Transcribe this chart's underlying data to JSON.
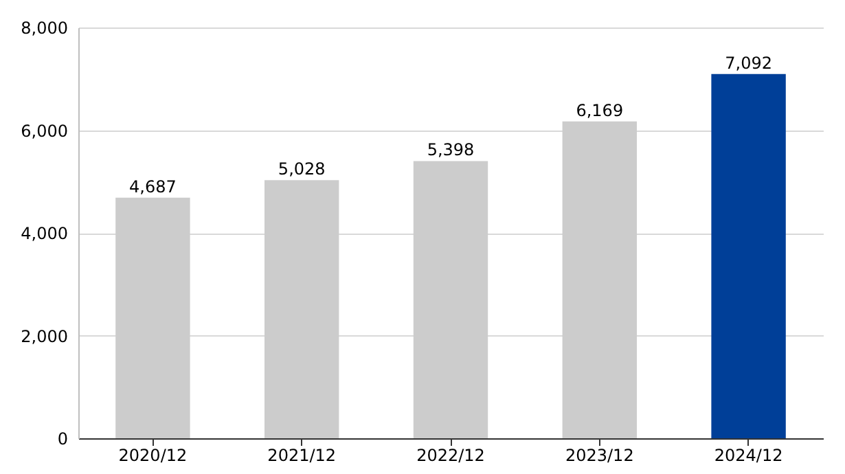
{
  "chart_data": {
    "type": "bar",
    "categories": [
      "2020/12",
      "2021/12",
      "2022/12",
      "2023/12",
      "2024/12"
    ],
    "values": [
      4687,
      5028,
      5398,
      6169,
      7092
    ],
    "colors": [
      "#cccccc",
      "#cccccc",
      "#cccccc",
      "#cccccc",
      "#003f98"
    ],
    "value_labels": [
      "4,687",
      "5,028",
      "5,398",
      "6,169",
      "7,092"
    ],
    "ylim": [
      0,
      8000
    ],
    "yticks": [
      0,
      {
        "value": 2000,
        "label": "2,000"
      },
      {
        "value": 4000,
        "label": "4,000"
      },
      {
        "value": 6000,
        "label": "6,000"
      },
      {
        "value": 8000,
        "label": "8,000"
      }
    ],
    "grid": "y"
  }
}
